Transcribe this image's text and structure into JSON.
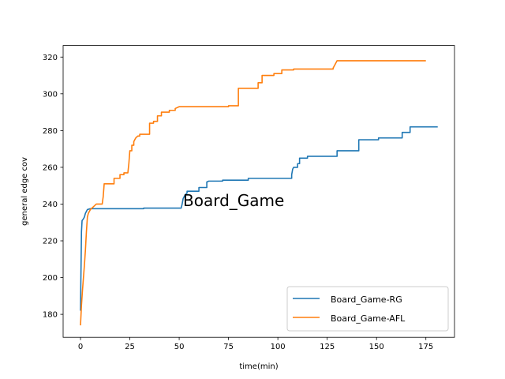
{
  "chart_data": {
    "type": "line",
    "title": "",
    "annotation": "Board_Game",
    "xlabel": "time(min)",
    "ylabel": "general edge cov",
    "xlim": [
      -8.8,
      189.5
    ],
    "ylim": [
      167.5,
      326.3
    ],
    "xticks": [
      0,
      25,
      50,
      75,
      100,
      125,
      150,
      175
    ],
    "yticks": [
      180,
      200,
      220,
      240,
      260,
      280,
      300,
      320
    ],
    "grid": false,
    "legend_position": "lower-right",
    "series": [
      {
        "name": "Board_Game-RG",
        "color": "#1f77b4",
        "points": [
          [
            0,
            182
          ],
          [
            0.5,
            225
          ],
          [
            0.8,
            231
          ],
          [
            1.5,
            232
          ],
          [
            2,
            233
          ],
          [
            2.5,
            235
          ],
          [
            3,
            236
          ],
          [
            3.5,
            237
          ],
          [
            5,
            237.5
          ],
          [
            32,
            237.5
          ],
          [
            32,
            237.8
          ],
          [
            51,
            237.8
          ],
          [
            51.5,
            240
          ],
          [
            52,
            243
          ],
          [
            53,
            245
          ],
          [
            54,
            246
          ],
          [
            54,
            247
          ],
          [
            60,
            247
          ],
          [
            60,
            249
          ],
          [
            64,
            249
          ],
          [
            64,
            252
          ],
          [
            65,
            252.5
          ],
          [
            72,
            252.5
          ],
          [
            72,
            253
          ],
          [
            85,
            253
          ],
          [
            85,
            254
          ],
          [
            107,
            254
          ],
          [
            107,
            256
          ],
          [
            107.5,
            259
          ],
          [
            108,
            260
          ],
          [
            110,
            260
          ],
          [
            110,
            262
          ],
          [
            111,
            262
          ],
          [
            111,
            265
          ],
          [
            115,
            265
          ],
          [
            115,
            266
          ],
          [
            130,
            266
          ],
          [
            130,
            269
          ],
          [
            141,
            269
          ],
          [
            141,
            275
          ],
          [
            151,
            275
          ],
          [
            151,
            276
          ],
          [
            163,
            276
          ],
          [
            163,
            279
          ],
          [
            167,
            279
          ],
          [
            167,
            282
          ],
          [
            181,
            282
          ]
        ]
      },
      {
        "name": "Board_Game-AFL",
        "color": "#ff7f0e",
        "points": [
          [
            0,
            174
          ],
          [
            0.5,
            185
          ],
          [
            1,
            193
          ],
          [
            1.5,
            200
          ],
          [
            2,
            207
          ],
          [
            2.5,
            215
          ],
          [
            3,
            225
          ],
          [
            3.5,
            233
          ],
          [
            4,
            235
          ],
          [
            4.5,
            236
          ],
          [
            5,
            237
          ],
          [
            6,
            238
          ],
          [
            7,
            239
          ],
          [
            8,
            240
          ],
          [
            11,
            240
          ],
          [
            11.5,
            244
          ],
          [
            12,
            251
          ],
          [
            17,
            251
          ],
          [
            17,
            254
          ],
          [
            20,
            254
          ],
          [
            20,
            256
          ],
          [
            22,
            256
          ],
          [
            22,
            257
          ],
          [
            24,
            257
          ],
          [
            24.5,
            262
          ],
          [
            25,
            269
          ],
          [
            26,
            269
          ],
          [
            26,
            272
          ],
          [
            27,
            272
          ],
          [
            27,
            274
          ],
          [
            28,
            276
          ],
          [
            29,
            277
          ],
          [
            30,
            277
          ],
          [
            30,
            278
          ],
          [
            35,
            278
          ],
          [
            35,
            284
          ],
          [
            37,
            284
          ],
          [
            37,
            285
          ],
          [
            39,
            285
          ],
          [
            39,
            288
          ],
          [
            41,
            288
          ],
          [
            41,
            290
          ],
          [
            45,
            290
          ],
          [
            45,
            291
          ],
          [
            48,
            291
          ],
          [
            48,
            292
          ],
          [
            50,
            293
          ],
          [
            75,
            293
          ],
          [
            75,
            293.5
          ],
          [
            80,
            293.5
          ],
          [
            80,
            303
          ],
          [
            90,
            303
          ],
          [
            90,
            306
          ],
          [
            92,
            306
          ],
          [
            92,
            310
          ],
          [
            98,
            310
          ],
          [
            98,
            311
          ],
          [
            102,
            311
          ],
          [
            102,
            313
          ],
          [
            108,
            313
          ],
          [
            108,
            313.5
          ],
          [
            128,
            313.5
          ],
          [
            128,
            314
          ],
          [
            129,
            316
          ],
          [
            130,
            318
          ],
          [
            175,
            318
          ]
        ]
      }
    ]
  }
}
